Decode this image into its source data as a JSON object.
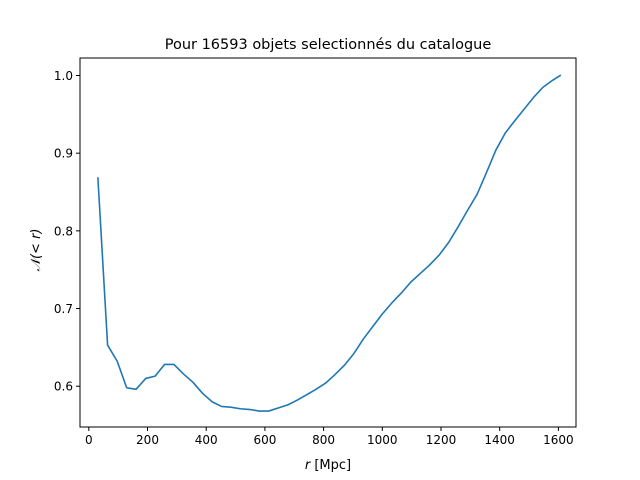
{
  "chart_data": {
    "type": "line",
    "title": "Pour 16593 objets selectionnés du catalogue",
    "xlabel": {
      "italic": "r",
      "rest": " [Mpc]"
    },
    "ylabel": {
      "main": "𝒩",
      "rest": "(< r)"
    },
    "xlim": [
      -30,
      1660
    ],
    "ylim": [
      0.5475,
      1.0225
    ],
    "xticks": [
      0,
      200,
      400,
      600,
      800,
      1000,
      1200,
      1400,
      1600
    ],
    "xtick_labels": [
      "0",
      "200",
      "400",
      "600",
      "800",
      "1000",
      "1200",
      "1400",
      "1600"
    ],
    "yticks": [
      0.6,
      0.7,
      0.8,
      0.9,
      1.0
    ],
    "ytick_labels": [
      "0.6",
      "0.7",
      "0.8",
      "0.9",
      "1.0"
    ],
    "grid": false,
    "series": [
      {
        "color": "#1f77b4",
        "x": [
          31,
          64,
          97,
          129,
          161,
          194,
          226,
          258,
          290,
          322,
          355,
          387,
          420,
          452,
          484,
          516,
          549,
          581,
          613,
          645,
          678,
          710,
          742,
          774,
          807,
          839,
          871,
          903,
          936,
          968,
          1000,
          1032,
          1065,
          1097,
          1129,
          1161,
          1194,
          1226,
          1258,
          1290,
          1323,
          1355,
          1387,
          1419,
          1452,
          1484,
          1516,
          1548,
          1581,
          1606
        ],
        "y": [
          0.868,
          0.653,
          0.632,
          0.598,
          0.596,
          0.61,
          0.613,
          0.628,
          0.628,
          0.616,
          0.605,
          0.591,
          0.58,
          0.574,
          0.573,
          0.571,
          0.57,
          0.568,
          0.568,
          0.572,
          0.576,
          0.582,
          0.589,
          0.596,
          0.604,
          0.615,
          0.627,
          0.642,
          0.661,
          0.677,
          0.693,
          0.707,
          0.72,
          0.734,
          0.745,
          0.756,
          0.769,
          0.785,
          0.805,
          0.826,
          0.847,
          0.875,
          0.904,
          0.926,
          0.942,
          0.957,
          0.972,
          0.985,
          0.994,
          1.0
        ]
      }
    ]
  }
}
